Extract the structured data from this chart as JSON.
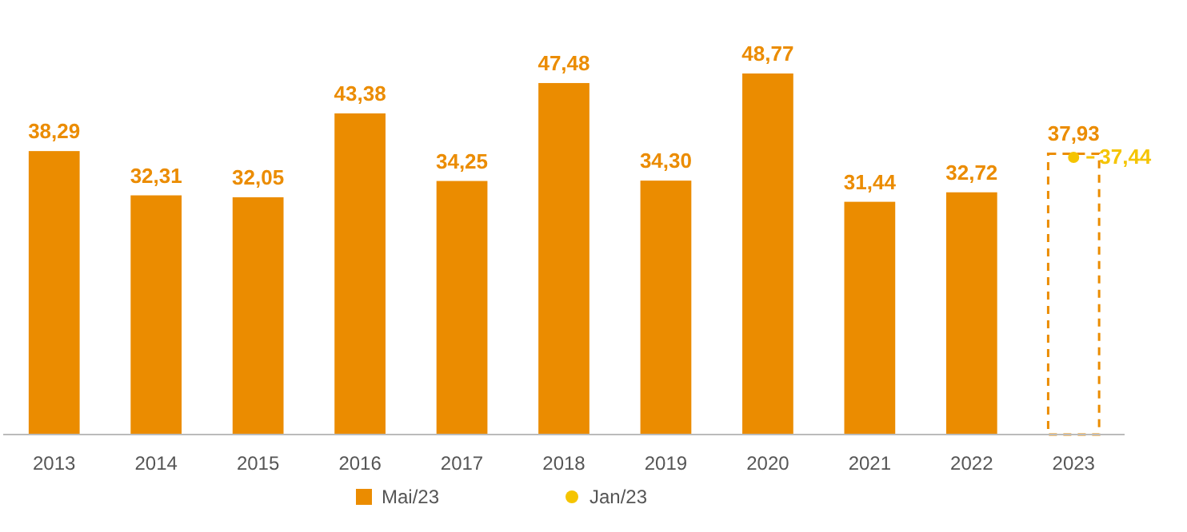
{
  "chart_data": {
    "type": "bar",
    "categories": [
      "2013",
      "2014",
      "2015",
      "2016",
      "2017",
      "2018",
      "2019",
      "2020",
      "2021",
      "2022",
      "2023"
    ],
    "series": [
      {
        "name": "Mai/23",
        "color": "#eb8c00",
        "values": [
          38.29,
          32.31,
          32.05,
          43.38,
          34.25,
          47.48,
          34.3,
          48.77,
          31.44,
          32.72,
          null
        ],
        "value_labels": [
          "38,29",
          "32,31",
          "32,05",
          "43,38",
          "34,25",
          "47,48",
          "34,30",
          "48,77",
          "31,44",
          "32,72",
          null
        ]
      },
      {
        "color": "#eb8c00",
        "line_style": "dashed",
        "values": [
          null,
          null,
          null,
          null,
          null,
          null,
          null,
          null,
          null,
          null,
          37.93
        ],
        "value_labels": [
          null,
          null,
          null,
          null,
          null,
          null,
          null,
          null,
          null,
          null,
          "37,93"
        ]
      },
      {
        "name": "Jan/23",
        "type": "scatter",
        "color": "#f5c400",
        "marker": "circle",
        "values": [
          null,
          null,
          null,
          null,
          null,
          null,
          null,
          null,
          null,
          null,
          37.44
        ],
        "value_labels": [
          null,
          null,
          null,
          null,
          null,
          null,
          null,
          null,
          null,
          null,
          "37,44"
        ]
      }
    ],
    "legend": "bottom"
  }
}
